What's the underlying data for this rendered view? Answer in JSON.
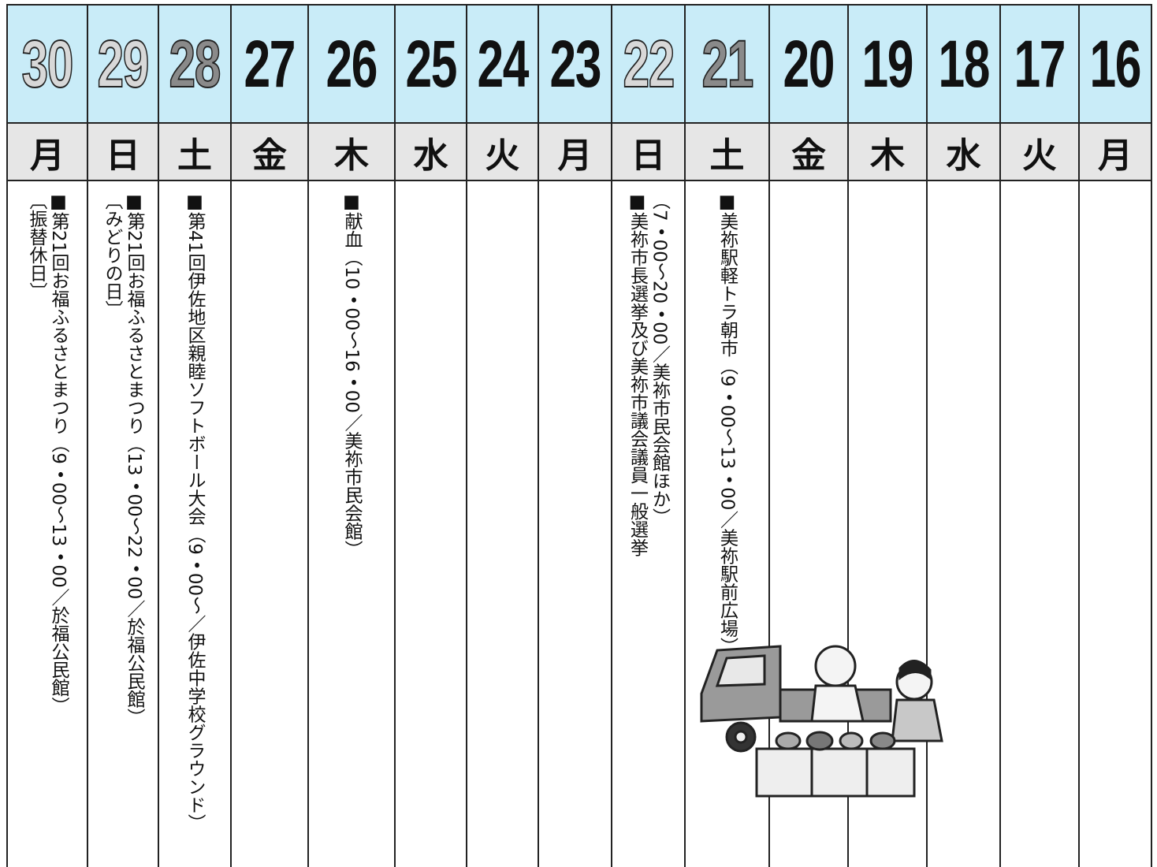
{
  "days": [
    {
      "date": "30",
      "weekday": "月",
      "color": "#d8d8d8",
      "events": [
        "〔振替休日〕",
        "■第21回お福ふるさとまつり（9・00〜13・00／於福公民館）"
      ]
    },
    {
      "date": "29",
      "weekday": "日",
      "color": "#d8d8d8",
      "events": [
        "〔みどりの日〕",
        "■第21回お福ふるさとまつり（13・00〜22・00／於福公民館）"
      ]
    },
    {
      "date": "28",
      "weekday": "土",
      "color": "#8a8a8a",
      "events": [
        "■第41回伊佐地区親睦ソフトボール大会（9・00〜／伊佐中学校グラウンド）"
      ]
    },
    {
      "date": "27",
      "weekday": "金",
      "color": "#111111",
      "events": []
    },
    {
      "date": "26",
      "weekday": "木",
      "color": "#111111",
      "events": [
        "■献血（10・00〜16・00／美祢市民会館）"
      ]
    },
    {
      "date": "25",
      "weekday": "水",
      "color": "#111111",
      "events": []
    },
    {
      "date": "24",
      "weekday": "火",
      "color": "#111111",
      "events": []
    },
    {
      "date": "23",
      "weekday": "月",
      "color": "#111111",
      "events": []
    },
    {
      "date": "22",
      "weekday": "日",
      "color": "#d8d8d8",
      "events": [
        "■美祢市長選挙及び美祢市議会議員一般選挙",
        "（7・00〜20・00／美祢市民会館ほか）"
      ]
    },
    {
      "date": "21",
      "weekday": "土",
      "color": "#8a8a8a",
      "events": [
        "■美祢駅軽トラ朝市（9・00〜13・00／美祢駅前広場）"
      ]
    },
    {
      "date": "20",
      "weekday": "金",
      "color": "#111111",
      "events": []
    },
    {
      "date": "19",
      "weekday": "木",
      "color": "#111111",
      "events": []
    },
    {
      "date": "18",
      "weekday": "水",
      "color": "#111111",
      "events": []
    },
    {
      "date": "17",
      "weekday": "火",
      "color": "#111111",
      "events": []
    },
    {
      "date": "16",
      "weekday": "月",
      "color": "#111111",
      "events": []
    }
  ]
}
